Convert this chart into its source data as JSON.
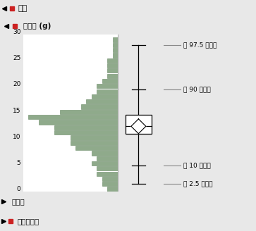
{
  "title_top": "分布",
  "title_sub": "总脂肪 (g)",
  "footer1": "分位数",
  "footer2": "汇总统计量",
  "bg_color": "#e8e8e8",
  "chart_bg": "#ffffff",
  "box_panel_bg": "#f0f0f0",
  "bar_color": "#8faa8b",
  "bar_edge_color": "#6a8966",
  "hist_vals": [
    2,
    3,
    3,
    4,
    4,
    5,
    4,
    5,
    8,
    9,
    9,
    12,
    12,
    15,
    17,
    11,
    7,
    6,
    5,
    4,
    4,
    3,
    2,
    2,
    2,
    2,
    1,
    1,
    1,
    1
  ],
  "yticks": [
    0,
    5,
    10,
    15,
    20,
    25,
    30
  ],
  "q2_5": 1.0,
  "q10": 4.5,
  "q25": 10.5,
  "q50": 12.0,
  "q75": 14.2,
  "q90": 19.0,
  "q97_5": 27.5,
  "label_97_5": "第 97.5 分位数",
  "label_90": "第 90 分位数",
  "label_10": "第 10 分位数",
  "label_2_5": "第 2.5 分位数",
  "header0_bg": "#d0d0d0",
  "header1_bg": "#dcdcdc",
  "footer_bg": "#e4e4e4",
  "header_text_color": "#111111",
  "annot_line_color": "#888888"
}
